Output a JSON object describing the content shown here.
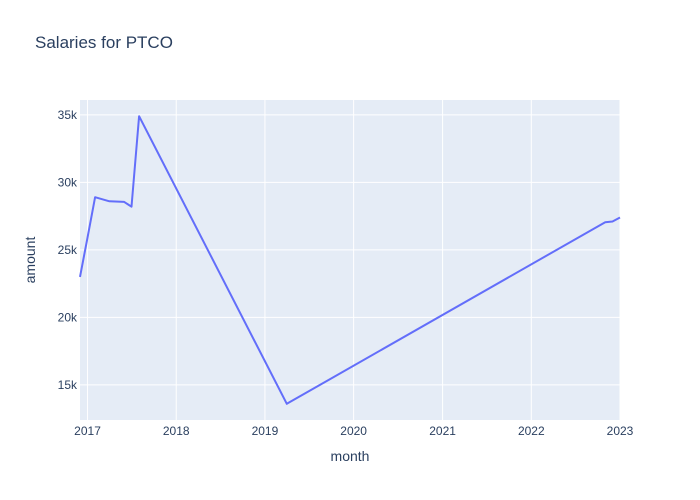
{
  "chart_data": {
    "type": "line",
    "title": "Salaries for PTCO",
    "xlabel": "month",
    "ylabel": "amount",
    "x_tick_labels": [
      "2017",
      "2018",
      "2019",
      "2020",
      "2021",
      "2022",
      "2023"
    ],
    "y_tick_labels": [
      "15k",
      "20k",
      "25k",
      "30k",
      "35k"
    ],
    "y_ticks": [
      15000,
      20000,
      25000,
      30000,
      35000
    ],
    "xlim": [
      "2016-12-01",
      "2023-01-01"
    ],
    "ylim": [
      12400,
      36100
    ],
    "grid": true,
    "legend": "none",
    "series": [
      {
        "x": [
          "2016-12-01",
          "2017-01-01",
          "2017-02-01",
          "2017-04-01",
          "2017-06-01",
          "2017-07-01",
          "2017-08-01",
          "2019-04-01",
          "2022-11-01",
          "2022-12-01",
          "2023-01-01"
        ],
        "values": [
          23000,
          25900,
          28900,
          28600,
          28550,
          28200,
          34900,
          13600,
          27050,
          27100,
          27400
        ],
        "color": "#636efa"
      }
    ]
  },
  "colors": {
    "plot_background": "#e5ecf6",
    "grid": "#ffffff",
    "text": "#2a3f5f",
    "line": "#636efa"
  }
}
